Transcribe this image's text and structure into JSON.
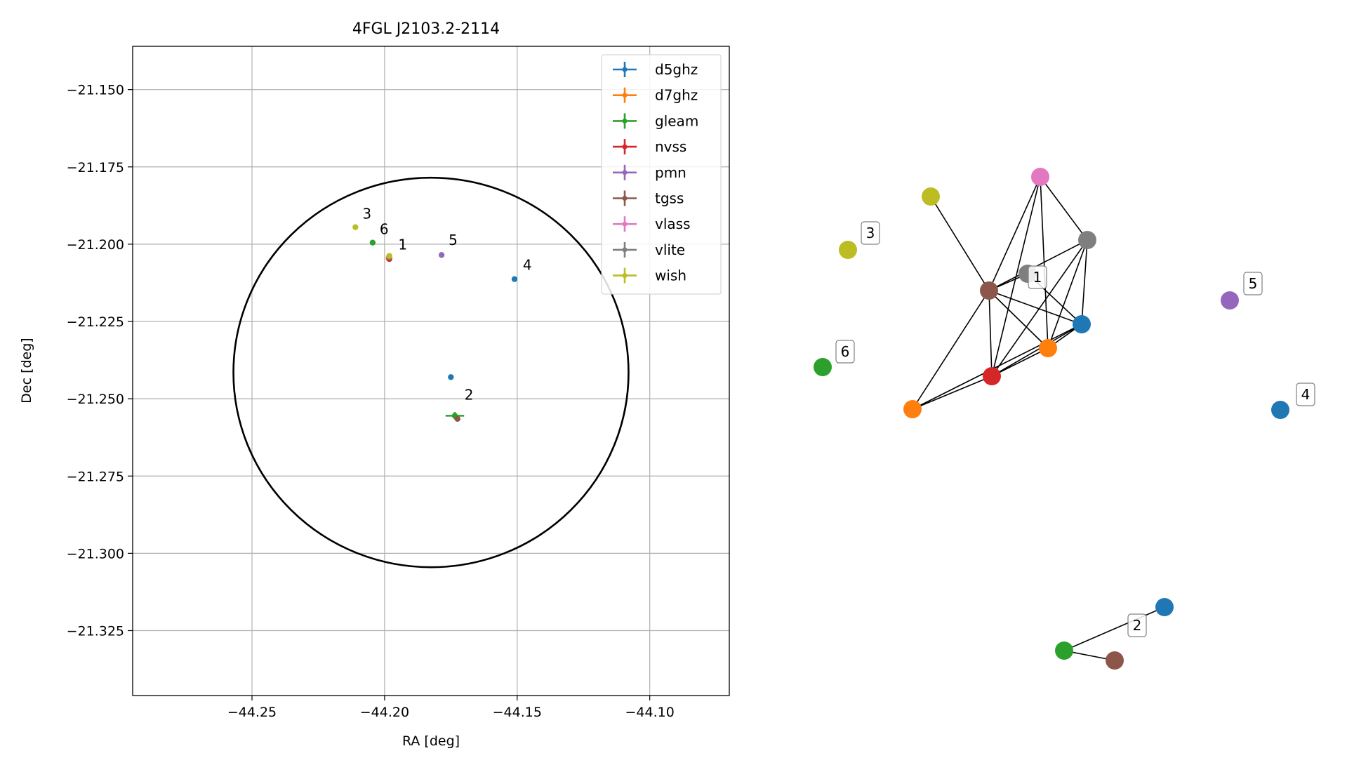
{
  "chart_data": [
    {
      "type": "scatter",
      "title": "4FGL J2103.2-2114",
      "xlabel": "RA [deg]",
      "ylabel": "Dec [deg]",
      "xlim": [
        -44.295,
        -44.07
      ],
      "ylim": [
        -21.346,
        -21.136
      ],
      "xticks": [
        -44.25,
        -44.2,
        -44.15,
        -44.1
      ],
      "xtick_labels": [
        "−44.25",
        "−44.20",
        "−44.15",
        "−44.10"
      ],
      "yticks": [
        -21.15,
        -21.175,
        -21.2,
        -21.225,
        -21.25,
        -21.275,
        -21.3,
        -21.325
      ],
      "ytick_labels": [
        "−21.150",
        "−21.175",
        "−21.200",
        "−21.225",
        "−21.250",
        "−21.275",
        "−21.300",
        "−21.325"
      ],
      "grid": true,
      "legend_position": "top-right",
      "ellipse": {
        "center": [
          -44.1825,
          -21.2415
        ],
        "ra_radius": 0.0745,
        "dec_radius": 0.063,
        "color": "#000000"
      },
      "series": [
        {
          "name": "d5ghz",
          "color": "#1f77b4",
          "points": [
            [
              -44.151,
              -21.2113
            ],
            [
              -44.175,
              -21.243
            ]
          ]
        },
        {
          "name": "d7ghz",
          "color": "#ff7f0e",
          "points": [
            [
              -44.1985,
              -21.2045
            ]
          ]
        },
        {
          "name": "gleam",
          "color": "#2ca02c",
          "points": [
            [
              -44.2045,
              -21.1995
            ],
            [
              -44.1735,
              -21.2555
            ]
          ],
          "errorbars": [
            null,
            {
              "xerr": 0.0035,
              "yerr": 0.0012
            }
          ]
        },
        {
          "name": "nvss",
          "color": "#d62728",
          "points": [
            [
              -44.1982,
              -21.2048
            ]
          ]
        },
        {
          "name": "pmn",
          "color": "#9467bd",
          "points": [
            [
              -44.1785,
              -21.2035
            ]
          ]
        },
        {
          "name": "tgss",
          "color": "#8c564b",
          "points": [
            [
              -44.1725,
              -21.2565
            ]
          ]
        },
        {
          "name": "vlass",
          "color": "#e377c2",
          "points": [
            [
              -44.1983,
              -21.204
            ]
          ]
        },
        {
          "name": "vlite",
          "color": "#7f7f7f",
          "points": [
            [
              -44.1982,
              -21.2042
            ]
          ]
        },
        {
          "name": "wish",
          "color": "#bcbd22",
          "points": [
            [
              -44.211,
              -21.1945
            ],
            [
              -44.1982,
              -21.2038
            ]
          ]
        }
      ],
      "annotations": [
        {
          "text": "1",
          "x": -44.1975,
          "y": -21.2045
        },
        {
          "text": "2",
          "x": -44.1725,
          "y": -21.253
        },
        {
          "text": "3",
          "x": -44.211,
          "y": -21.1945
        },
        {
          "text": "4",
          "x": -44.1505,
          "y": -21.211
        },
        {
          "text": "5",
          "x": -44.1785,
          "y": -21.203
        },
        {
          "text": "6",
          "x": -44.2045,
          "y": -21.1995
        }
      ]
    },
    {
      "type": "network",
      "labels": [
        "1",
        "2",
        "3",
        "4",
        "5",
        "6"
      ],
      "nodes": [
        {
          "id": "c1-tgss",
          "color": "#8c564b"
        },
        {
          "id": "c1-vlite",
          "color": "#7f7f7f"
        },
        {
          "id": "c1-vlite2",
          "color": "#7f7f7f"
        },
        {
          "id": "c1-vlass",
          "color": "#e377c2"
        },
        {
          "id": "c1-wish",
          "color": "#bcbd22"
        },
        {
          "id": "c1-d5ghz",
          "color": "#1f77b4"
        },
        {
          "id": "c1-d7ghz",
          "color": "#ff7f0e"
        },
        {
          "id": "c1-nvss",
          "color": "#d62728"
        },
        {
          "id": "c1-d7ghz2",
          "color": "#ff7f0e"
        },
        {
          "id": "c3-wish",
          "color": "#bcbd22"
        },
        {
          "id": "c6-gleam",
          "color": "#2ca02c"
        },
        {
          "id": "c5-pmn",
          "color": "#9467bd"
        },
        {
          "id": "c4-d5ghz",
          "color": "#1f77b4"
        },
        {
          "id": "c2-d5ghz",
          "color": "#1f77b4"
        },
        {
          "id": "c2-gleam",
          "color": "#2ca02c"
        },
        {
          "id": "c2-tgss",
          "color": "#8c564b"
        }
      ]
    }
  ]
}
